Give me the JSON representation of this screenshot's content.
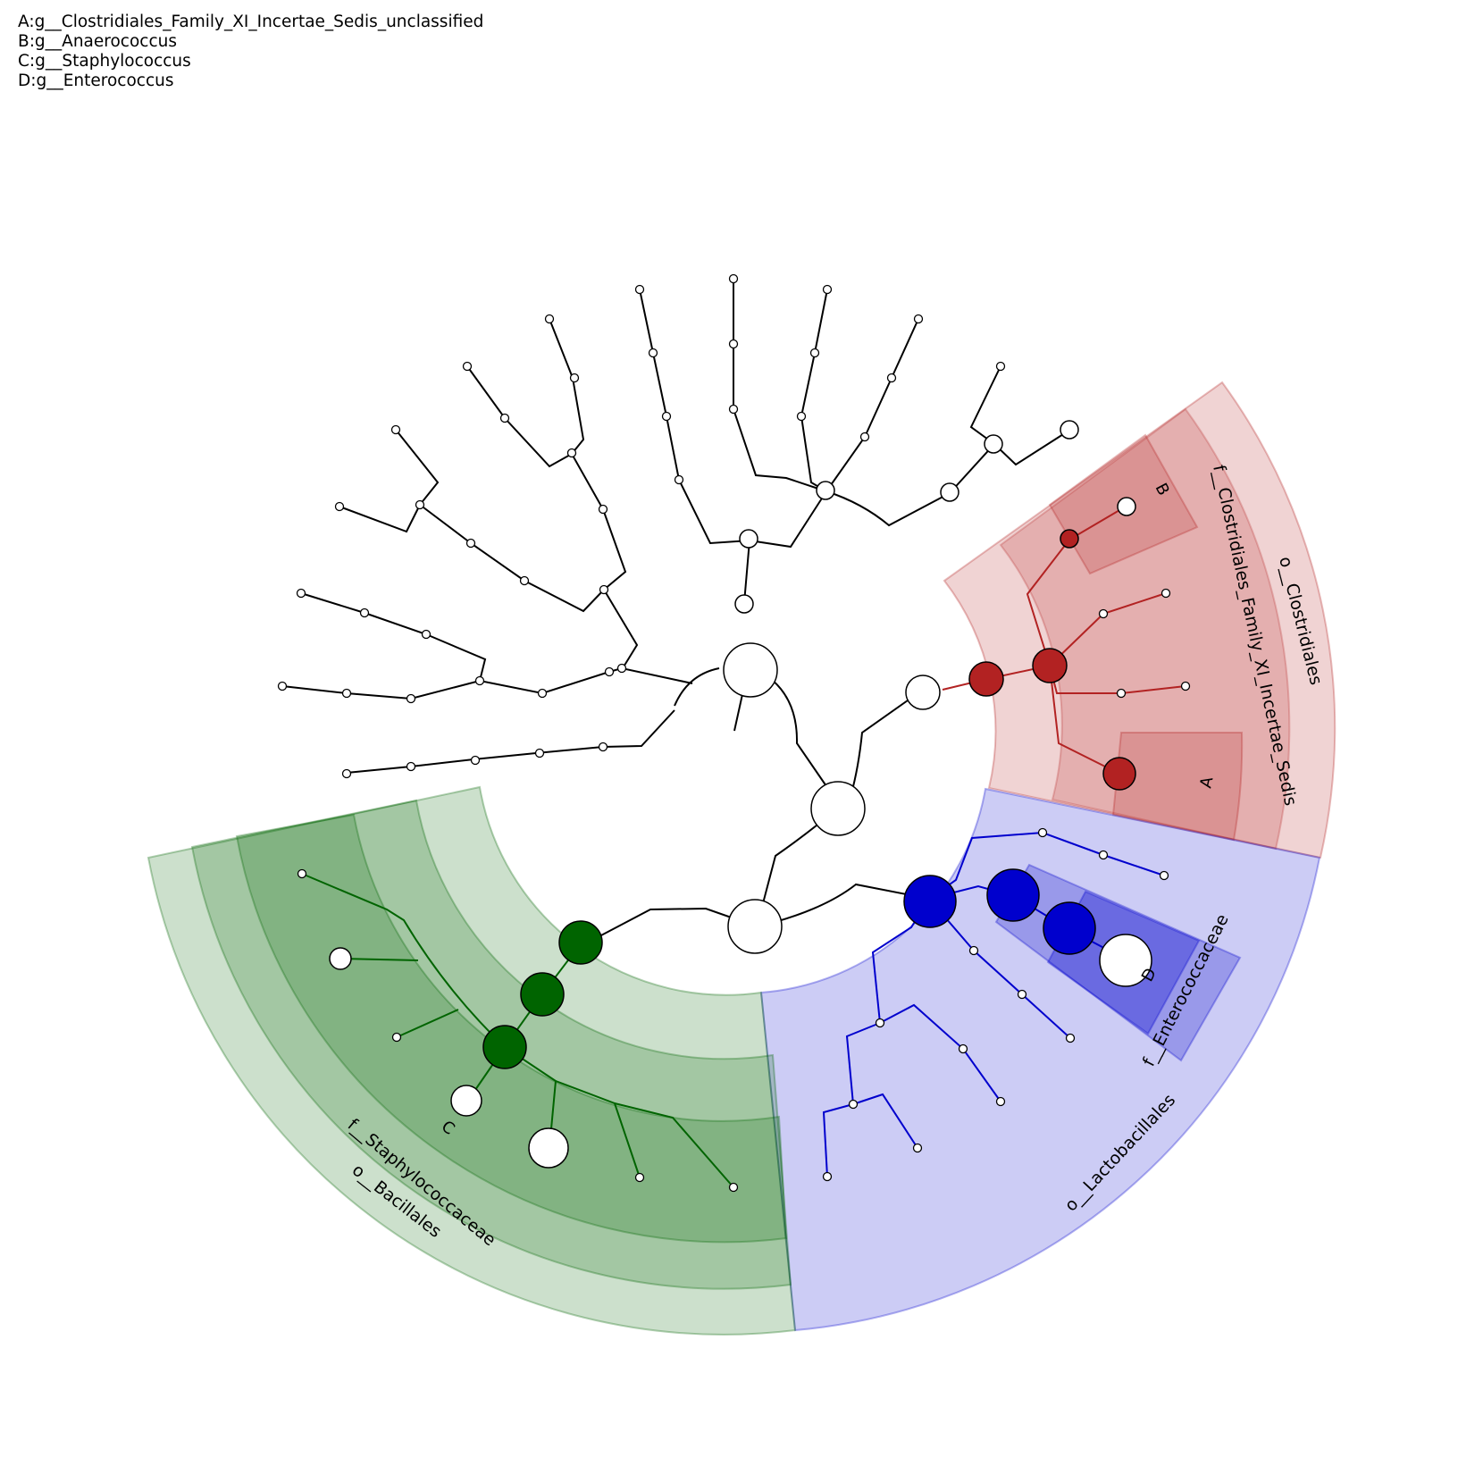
{
  "legend": [
    {
      "key": "A",
      "text": "A:g__Clostridiales_Family_XI_Incertae_Sedis_unclassified"
    },
    {
      "key": "B",
      "text": "B:g__Anaerococcus"
    },
    {
      "key": "C",
      "text": "C:g__Staphylococcus"
    },
    {
      "key": "D",
      "text": "D:g__Enterococcus"
    }
  ],
  "colors": {
    "clostridiales": "#b22222",
    "lactobacillales": "#0000cd",
    "bacillales": "#006400",
    "neutral_node": "#ffffff",
    "edge": "#000000"
  },
  "clades": {
    "o_clostridiales": "o__Clostridiales",
    "f_clostridiales_xi": "f__Clostridiales_Family_XI_Incertae_Sedis",
    "o_lactobacillales": "o__Lactobacillales",
    "f_enterococcaceae": "f__Enterococcaceae",
    "o_bacillales": "o__Bacillales",
    "f_staphylococcaceae": "f__Staphylococcaceae"
  },
  "tags": {
    "A": "A",
    "B": "B",
    "C": "C",
    "D": "D"
  }
}
